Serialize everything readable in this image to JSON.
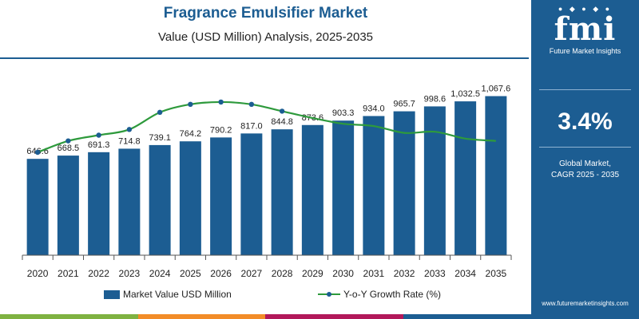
{
  "header": {
    "title": "Fragrance Emulsifier Market",
    "subtitle": "Value (USD Million) Analysis, 2025-2035"
  },
  "sidebar": {
    "logo_text": "fmi",
    "logo_tagline": "Future Market Insights",
    "cagr_value": "3.4%",
    "cagr_label_line1": "Global Market,",
    "cagr_label_line2": "CAGR 2025 - 2035",
    "website": "www.futuremarketinsights.com"
  },
  "legend": {
    "bars_label": "Market Value USD Million",
    "line_label": "Y-o-Y Growth Rate (%)"
  },
  "colors": {
    "bar": "#1c5d92",
    "line": "#2e9a3c",
    "marker": "#1c5d92",
    "sidebar": "#1c5d92",
    "bottom_strip": [
      "#7fb241",
      "#f28c28",
      "#b2185a",
      "#1c5d92"
    ]
  },
  "chart_data": {
    "type": "bar",
    "title": "Fragrance Emulsifier Market",
    "subtitle": "Value (USD Million) Analysis, 2025-2035",
    "categories": [
      "2020",
      "2021",
      "2022",
      "2023",
      "2024",
      "2025",
      "2026",
      "2027",
      "2028",
      "2029",
      "2030",
      "2031",
      "2032",
      "2033",
      "2034",
      "2035"
    ],
    "series": [
      {
        "name": "Market Value USD Million",
        "type": "bar",
        "values": [
          646.6,
          668.5,
          691.3,
          714.8,
          739.1,
          764.2,
          790.2,
          817.0,
          844.8,
          873.6,
          903.3,
          934.0,
          965.7,
          998.6,
          1032.5,
          1067.6
        ],
        "labels": [
          "646.6",
          "668.5",
          "691.3",
          "714.8",
          "739.1",
          "764.2",
          "790.2",
          "817.0",
          "844.8",
          "873.6",
          "903.3",
          "934.0",
          "965.7",
          "998.6",
          "1,032.5",
          "1,067.6"
        ]
      },
      {
        "name": "Y-o-Y Growth Rate (%)",
        "type": "line",
        "values": [
          3.3,
          3.4,
          3.45,
          3.5,
          3.65,
          3.72,
          3.74,
          3.72,
          3.66,
          3.6,
          3.55,
          3.53,
          3.47,
          3.48,
          3.42,
          3.4
        ],
        "markers_at": [
          "2020",
          "2021",
          "2022",
          "2023",
          "2024",
          "2025",
          "2026",
          "2027",
          "2028"
        ]
      }
    ],
    "ylim": [
      0,
      1140
    ],
    "y2lim": [
      2.4,
      3.9
    ],
    "grid": false,
    "legend_position": "bottom"
  }
}
